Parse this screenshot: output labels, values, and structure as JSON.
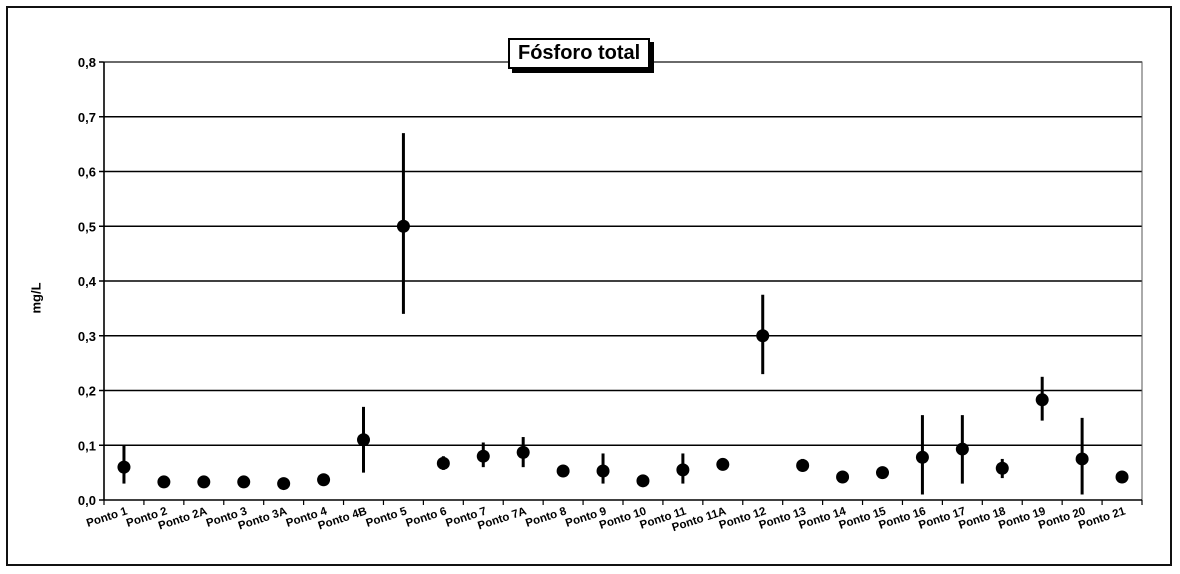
{
  "chart_data": {
    "type": "scatter",
    "title": "Fósforo total",
    "xlabel": "",
    "ylabel": "mg/L",
    "ylim": [
      0,
      0.8
    ],
    "yticks": [
      "0,0",
      "0,1",
      "0,2",
      "0,3",
      "0,4",
      "0,5",
      "0,6",
      "0,7",
      "0,8"
    ],
    "grid": "horizontal",
    "legend": "none",
    "categories": [
      "Ponto 1",
      "Ponto 2",
      "Ponto 2A",
      "Ponto 3",
      "Ponto 3A",
      "Ponto 4",
      "Ponto 4B",
      "Ponto 5",
      "Ponto 6",
      "Ponto 7",
      "Ponto 7A",
      "Ponto 8",
      "Ponto 9",
      "Ponto 10",
      "Ponto 11",
      "Ponto 11A",
      "Ponto 12",
      "Ponto 13",
      "Ponto 14",
      "Ponto 15",
      "Ponto 16",
      "Ponto 17",
      "Ponto 18",
      "Ponto 19",
      "Ponto 20",
      "Ponto 21"
    ],
    "values": [
      0.06,
      0.033,
      0.033,
      0.033,
      0.03,
      0.037,
      0.11,
      0.5,
      0.067,
      0.08,
      0.087,
      0.053,
      0.053,
      0.035,
      0.055,
      0.065,
      0.3,
      0.063,
      0.042,
      0.05,
      0.078,
      0.093,
      0.058,
      0.183,
      0.075,
      0.042
    ],
    "err_low": [
      0.03,
      0.033,
      0.033,
      0.033,
      0.03,
      0.037,
      0.05,
      0.34,
      0.055,
      0.06,
      0.06,
      0.053,
      0.03,
      0.035,
      0.03,
      0.055,
      0.23,
      0.053,
      0.042,
      0.05,
      0.01,
      0.03,
      0.04,
      0.145,
      0.01,
      0.042
    ],
    "err_high": [
      0.1,
      0.033,
      0.033,
      0.033,
      0.03,
      0.037,
      0.17,
      0.67,
      0.08,
      0.105,
      0.115,
      0.053,
      0.085,
      0.035,
      0.085,
      0.075,
      0.375,
      0.075,
      0.042,
      0.05,
      0.155,
      0.155,
      0.075,
      0.225,
      0.15,
      0.042
    ],
    "marker_color": "#000000",
    "gridline_color": "#000000"
  }
}
